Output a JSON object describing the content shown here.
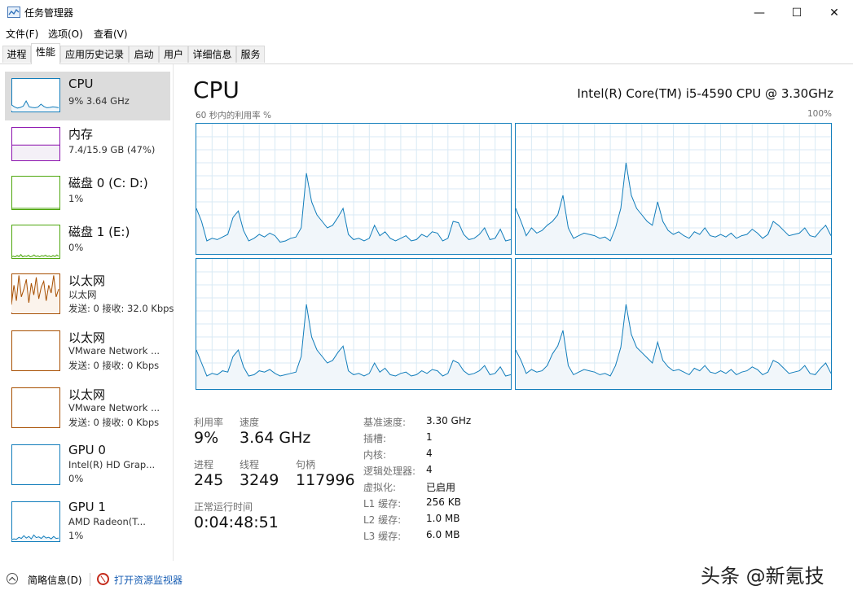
{
  "window": {
    "title": "任务管理器",
    "controls": [
      "—",
      "☐",
      "✕"
    ]
  },
  "menu": [
    "文件(F)",
    "选项(O)",
    "查看(V)"
  ],
  "tabs": [
    "进程",
    "性能",
    "应用历史记录",
    "启动",
    "用户",
    "详细信息",
    "服务"
  ],
  "sidebar": [
    {
      "title": "CPU",
      "line1": "9% 3.64 GHz",
      "line2": "",
      "color": "#117dbb",
      "fill": "#f1f6fa",
      "type": "cpu",
      "selected": true
    },
    {
      "title": "内存",
      "line1": "7.4/15.9 GB (47%)",
      "line2": "",
      "color": "#8b12ae",
      "fill": "#f4f0f7",
      "type": "mem",
      "selected": false
    },
    {
      "title": "磁盘 0 (C: D:)",
      "line1": "1%",
      "line2": "",
      "color": "#4da60c",
      "fill": "#eff7ea",
      "type": "flat",
      "selected": false
    },
    {
      "title": "磁盘 1 (E:)",
      "line1": "0%",
      "line2": "",
      "color": "#4da60c",
      "fill": "#eff7ea",
      "type": "disk1",
      "selected": false
    },
    {
      "title": "以太网",
      "line1": "以太网",
      "line2": "发送: 0 接收: 32.0 Kbps",
      "color": "#a74f01",
      "fill": "#fbf3ec",
      "type": "eth",
      "selected": false
    },
    {
      "title": "以太网",
      "line1": "VMware Network ...",
      "line2": "发送: 0 接收: 0 Kbps",
      "color": "#a74f01",
      "fill": "#fbf3ec",
      "type": "empty",
      "selected": false
    },
    {
      "title": "以太网",
      "line1": "VMware Network ...",
      "line2": "发送: 0 接收: 0 Kbps",
      "color": "#a74f01",
      "fill": "#fbf3ec",
      "type": "empty",
      "selected": false
    },
    {
      "title": "GPU 0",
      "line1": "Intel(R) HD Grap...",
      "line2": "0%",
      "color": "#117dbb",
      "fill": "#f1f6fa",
      "type": "empty",
      "selected": false
    },
    {
      "title": "GPU 1",
      "line1": "AMD Radeon(T...",
      "line2": "1%",
      "color": "#117dbb",
      "fill": "#f1f6fa",
      "type": "gpu1",
      "selected": false
    }
  ],
  "main": {
    "title": "CPU",
    "model": "Intel(R) Core(TM) i5-4590 CPU @ 3.30GHz",
    "util_label": "60 秒内的利用率 %",
    "max_label": "100%"
  },
  "cores": [
    [
      35,
      25,
      10,
      12,
      11,
      13,
      15,
      28,
      33,
      18,
      10,
      12,
      15,
      13,
      16,
      14,
      9,
      10,
      12,
      13,
      20,
      62,
      40,
      30,
      25,
      20,
      22,
      28,
      35,
      15,
      11,
      12,
      10,
      12,
      22,
      14,
      17,
      12,
      10,
      12,
      14,
      10,
      11,
      15,
      13,
      17,
      16,
      10,
      12,
      25,
      24,
      15,
      11,
      12,
      15,
      20,
      11,
      12,
      19,
      10,
      11
    ],
    [
      35,
      25,
      14,
      20,
      16,
      18,
      22,
      25,
      30,
      45,
      20,
      12,
      14,
      16,
      15,
      14,
      12,
      13,
      10,
      20,
      35,
      70,
      45,
      35,
      30,
      25,
      22,
      40,
      25,
      18,
      15,
      17,
      14,
      12,
      17,
      15,
      20,
      14,
      13,
      15,
      13,
      16,
      12,
      14,
      15,
      19,
      16,
      12,
      15,
      25,
      22,
      18,
      14,
      15,
      16,
      20,
      14,
      13,
      18,
      22,
      14
    ],
    [
      30,
      20,
      10,
      12,
      11,
      14,
      13,
      25,
      30,
      17,
      10,
      11,
      14,
      13,
      15,
      12,
      10,
      11,
      12,
      13,
      25,
      65,
      40,
      30,
      25,
      20,
      22,
      28,
      33,
      14,
      11,
      12,
      10,
      12,
      20,
      13,
      16,
      11,
      10,
      12,
      13,
      10,
      11,
      14,
      12,
      15,
      14,
      10,
      12,
      22,
      20,
      14,
      11,
      12,
      14,
      18,
      11,
      12,
      17,
      10,
      11
    ],
    [
      30,
      22,
      12,
      15,
      13,
      14,
      18,
      27,
      33,
      45,
      18,
      11,
      13,
      15,
      14,
      13,
      11,
      12,
      10,
      18,
      32,
      65,
      42,
      32,
      28,
      24,
      20,
      36,
      22,
      17,
      14,
      15,
      13,
      11,
      16,
      14,
      18,
      13,
      12,
      14,
      12,
      15,
      11,
      13,
      14,
      17,
      15,
      11,
      13,
      22,
      20,
      16,
      12,
      13,
      14,
      18,
      12,
      11,
      16,
      20,
      12
    ]
  ],
  "thumbs": {
    "cpu": [
      18,
      12,
      8,
      10,
      14,
      30,
      12,
      10,
      9,
      11,
      20,
      13,
      9,
      10,
      12,
      11,
      9
    ],
    "disk1": [
      1,
      3,
      1,
      5,
      2,
      8,
      1,
      4,
      2,
      6,
      1,
      3,
      7,
      2,
      4,
      1,
      5,
      3,
      6,
      2,
      4,
      1,
      5,
      2,
      7,
      3
    ],
    "eth": [
      20,
      70,
      30,
      95,
      40,
      60,
      85,
      25,
      75,
      45,
      90,
      35,
      65,
      80,
      30,
      70,
      50,
      95,
      40,
      60
    ],
    "gpu1": [
      2,
      4,
      3,
      8,
      5,
      12,
      6,
      10,
      4,
      14,
      7,
      9,
      5,
      11,
      6,
      8,
      4,
      10,
      5,
      6
    ]
  },
  "stats": {
    "util_label": "利用率",
    "util": "9%",
    "speed_label": "速度",
    "speed": "3.64 GHz",
    "proc_label": "进程",
    "proc": "245",
    "thread_label": "线程",
    "thread": "3249",
    "handle_label": "句柄",
    "handle": "117996",
    "uptime_label": "正常运行时间",
    "uptime": "0:04:48:51"
  },
  "specs": [
    {
      "k": "基准速度:",
      "v": "3.30 GHz"
    },
    {
      "k": "插槽:",
      "v": "1"
    },
    {
      "k": "内核:",
      "v": "4"
    },
    {
      "k": "逻辑处理器:",
      "v": "4"
    },
    {
      "k": "虚拟化:",
      "v": "已启用"
    },
    {
      "k": "L1 缓存:",
      "v": "256 KB"
    },
    {
      "k": "L2 缓存:",
      "v": "1.0 MB"
    },
    {
      "k": "L3 缓存:",
      "v": "6.0 MB"
    }
  ],
  "footer": {
    "fewer": "简略信息(D)",
    "monitor": "打开资源监视器"
  },
  "watermark": "头条 @新氪技"
}
